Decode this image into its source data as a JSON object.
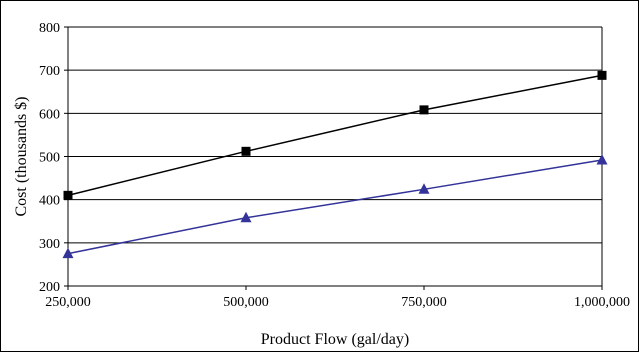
{
  "chart_data": {
    "type": "line",
    "title": "",
    "xlabel": "Product Flow (gal/day)",
    "ylabel": "Cost (thousands $)",
    "x": [
      250000,
      500000,
      750000,
      1000000
    ],
    "x_tick_labels": [
      "250,000",
      "500,000",
      "750,000",
      "1,000,000"
    ],
    "ylim": [
      200,
      800
    ],
    "y_ticks": [
      200,
      300,
      400,
      500,
      600,
      700,
      800
    ],
    "grid": "horizontal",
    "series": [
      {
        "marker": "square",
        "color": "#000000",
        "values": [
          410,
          512,
          608,
          688
        ]
      },
      {
        "marker": "triangle",
        "color": "#333399",
        "values": [
          275,
          358,
          424,
          492
        ]
      }
    ]
  }
}
